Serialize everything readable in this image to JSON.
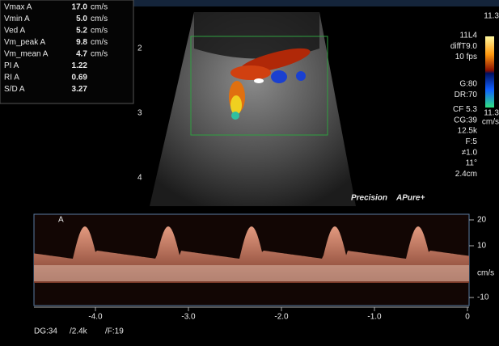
{
  "measurements": [
    {
      "label": "Vmax A",
      "value": "17.0",
      "unit": "cm/s"
    },
    {
      "label": "Vmin A",
      "value": "5.0",
      "unit": "cm/s"
    },
    {
      "label": "Ved A",
      "value": "5.2",
      "unit": "cm/s"
    },
    {
      "label": "Vm_peak A",
      "value": "9.8",
      "unit": "cm/s"
    },
    {
      "label": "Vm_mean A",
      "value": "4.7",
      "unit": "cm/s"
    },
    {
      "label": "PI A",
      "value": "1.22"
    },
    {
      "label": "RI A",
      "value": "0.69"
    },
    {
      "label": "S/D A",
      "value": "3.27"
    }
  ],
  "settings": [
    "11L4",
    "diffT9.0",
    "10 fps",
    "G:80",
    "DR:70",
    "CF 5.3",
    "CG:39",
    "12.5k",
    "F:5",
    "≠1.0",
    "11°",
    "2.4cm"
  ],
  "color_scale": {
    "top": "11.3",
    "bottom": "11.3",
    "unit": "cm/s"
  },
  "depth_markers": [
    "2",
    "3",
    "4"
  ],
  "branding": {
    "precision": "Precision",
    "pure": "APure+"
  },
  "spectrum": {
    "label": "A",
    "unit": "cm/s",
    "yticks": [
      20,
      10,
      -10
    ],
    "xticks": [
      {
        "value": -4,
        "label": "-4.0"
      },
      {
        "value": -3,
        "label": "-3.0"
      },
      {
        "value": -2,
        "label": "-2.0"
      },
      {
        "value": -1,
        "label": "-1.0"
      },
      0
    ]
  },
  "status": [
    "DG:34",
    "/2.4k",
    "/F:19"
  ]
}
